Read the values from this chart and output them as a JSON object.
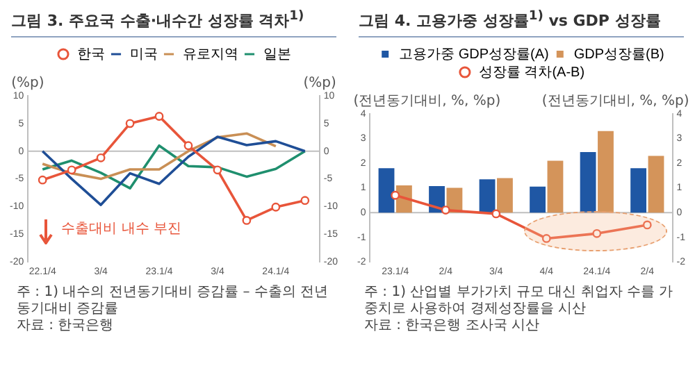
{
  "chart_data": [
    {
      "type": "line",
      "title": "그림 3. 주요국 수출·내수간 성장률 격차$^{1)}$",
      "categories": [
        "22.1/4",
        null,
        "3/4",
        null,
        "23.1/4",
        null,
        "3/4",
        null,
        "24.1/4",
        null
      ],
      "series": [
        {
          "name": "한국",
          "color": "#e8553a",
          "marker": "circle",
          "values": [
            -5.2,
            -3.4,
            -1.2,
            5.0,
            6.3,
            1.0,
            -3.4,
            -12.5,
            -10.1,
            -8.9
          ]
        },
        {
          "name": "미국",
          "color": "#1f4e96",
          "marker": "none",
          "values": [
            0,
            -5.0,
            -9.7,
            -4.0,
            -5.9,
            -1.0,
            2.6,
            1.1,
            1.8,
            0
          ]
        },
        {
          "name": "유로지역",
          "color": "#c98f55",
          "marker": "none",
          "values": [
            -2.3,
            -4.0,
            -5.0,
            -3.3,
            -3.3,
            0,
            2.5,
            3.2,
            0.9,
            null
          ]
        },
        {
          "name": "일본",
          "color": "#1f8f6e",
          "marker": "none",
          "values": [
            -3.3,
            -1.7,
            -3.9,
            -6.7,
            1.0,
            -2.7,
            -2.9,
            -4.6,
            -3.2,
            0
          ]
        }
      ],
      "ylim": [
        -20,
        10
      ],
      "yticks": [
        -20,
        -15,
        -10,
        -5,
        0,
        5,
        10
      ],
      "y2lim": [
        -20,
        10
      ],
      "y2ticks": [
        -20,
        -15,
        -10,
        -5,
        0,
        5,
        10
      ],
      "ylabel": "(%p)",
      "y2label": "(%p)",
      "ref_lines": [
        {
          "axis": "y",
          "value": 0,
          "color": "#bfbfbf"
        }
      ],
      "legend": "top",
      "grid": false,
      "annotations": [
        "수출대비 내수 부진",
        "주 : 1) 내수의 전년동기대비 증감률 – 수출의 전년동기대비 증감률",
        "자료 : 한국은행"
      ]
    },
    {
      "type": "bar",
      "title": "그림 4. 고용가중 성장률$^{1)}$ vs GDP 성장률",
      "categories": [
        "23.1/4",
        "2/4",
        "3/4",
        "4/4",
        "24.1/4",
        "2/4"
      ],
      "series": [
        {
          "name": "고용가중 GDP성장률(A)",
          "color": "#1f57a4",
          "values": [
            1.8,
            1.07,
            1.35,
            1.05,
            2.45,
            1.8
          ]
        },
        {
          "name": "GDP성장률(B)",
          "color": "#d4945a",
          "values": [
            1.1,
            1.0,
            1.4,
            2.1,
            3.3,
            2.3
          ]
        },
        {
          "name": "성장률 격차(A-B)",
          "type": "line",
          "color": "#e8553a",
          "marker": "circle",
          "values": [
            0.7,
            0.1,
            -0.05,
            -1.05,
            -0.85,
            -0.5
          ]
        }
      ],
      "ylim": [
        -2,
        4
      ],
      "yticks": [
        -2,
        -1,
        0,
        1,
        2,
        3,
        4
      ],
      "y2lim": [
        -2,
        4
      ],
      "y2ticks": [
        -2,
        -1,
        0,
        1,
        2,
        3,
        4
      ],
      "ylabel": "(전년동기대비, %, %p)",
      "y2label": "(전년동기대비, %, %p)",
      "ref_lines": [
        {
          "axis": "y",
          "value": 0,
          "color": "#bfbfbf"
        }
      ],
      "legend": "top",
      "grid": false,
      "annotations": [
        "주 : 1) 산업별 부가가치 규모 대신 취업자 수를 가중치로 사용하여 경제성장률을 시산",
        "자료 : 한국은행 조사국 시산"
      ]
    }
  ]
}
